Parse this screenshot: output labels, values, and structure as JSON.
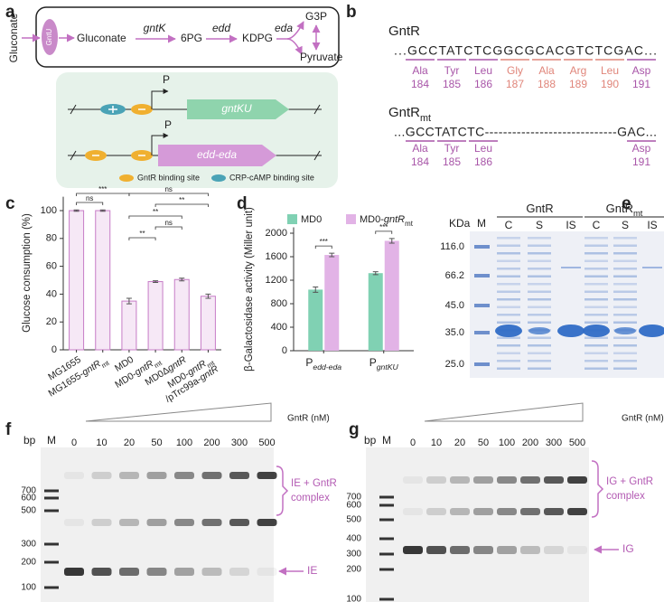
{
  "panel_labels": [
    "a",
    "b",
    "c",
    "d",
    "e",
    "f",
    "g"
  ],
  "pathway": {
    "outside": "Gluconate",
    "transporter": "GntU",
    "steps": [
      "Gluconate",
      "6PG",
      "KDPG",
      "G3P",
      "Pyruvate"
    ],
    "enzymes": [
      "gntK",
      "edd",
      "eda"
    ]
  },
  "operons": {
    "promoter": "P",
    "genes": [
      "gntKU",
      "edd-eda"
    ],
    "legend": [
      "GntR binding site",
      "CRP-cAMP binding site"
    ]
  },
  "sequences": [
    {
      "name": [
        {
          "text": "GntR"
        }
      ],
      "seq": "...GCCTATCTCGGCGCACGTCTCGAC...",
      "residues": [
        {
          "aa": "Ala",
          "pos": 184,
          "color": "#a855a8"
        },
        {
          "aa": "Tyr",
          "pos": 185,
          "color": "#a855a8"
        },
        {
          "aa": "Leu",
          "pos": 186,
          "color": "#a855a8"
        },
        {
          "aa": "Gly",
          "pos": 187,
          "color": "#e0857a"
        },
        {
          "aa": "Ala",
          "pos": 188,
          "color": "#e0857a"
        },
        {
          "aa": "Arg",
          "pos": 189,
          "color": "#e0857a"
        },
        {
          "aa": "Leu",
          "pos": 190,
          "color": "#e0857a"
        },
        {
          "aa": "Asp",
          "pos": 191,
          "color": "#a855a8"
        }
      ]
    },
    {
      "name": [
        {
          "text": "GntR"
        },
        {
          "text": "mt",
          "sub": true
        }
      ],
      "seq": "...GCCTATCTC-----------------------------GAC...",
      "residues": [
        {
          "aa": "Ala",
          "pos": 184,
          "color": "#a855a8"
        },
        {
          "aa": "Tyr",
          "pos": 185,
          "color": "#a855a8"
        },
        {
          "aa": "Leu",
          "pos": 186,
          "color": "#a855a8"
        },
        {
          "aa": "Asp",
          "pos": 191,
          "color": "#a855a8"
        }
      ]
    }
  ],
  "chart_data": [
    {
      "type": "bar",
      "ylabel": "Glucose consumption (%)",
      "categories": [
        [
          {
            "text": "MG1655"
          }
        ],
        [
          {
            "text": "MG1655-"
          },
          {
            "text": "gntR",
            "italic": true
          },
          {
            "text": "mt",
            "sub": true
          }
        ],
        [
          {
            "text": "MD0"
          }
        ],
        [
          {
            "text": "MD0-"
          },
          {
            "text": "gntR",
            "italic": true
          },
          {
            "text": "mt",
            "sub": true
          }
        ],
        [
          {
            "text": "MD0Δ"
          },
          {
            "text": "gntR",
            "italic": true
          }
        ],
        [
          {
            "text": "MD0-"
          },
          {
            "text": "gntR",
            "italic": true
          },
          {
            "text": "mt",
            "sub": true
          },
          {
            "text": "/pTrc99a-",
            "break": true
          },
          {
            "text": "gntR",
            "italic": true
          }
        ]
      ],
      "values": [
        100,
        100,
        35,
        49,
        50.5,
        38.5
      ],
      "errors": [
        0.5,
        0.5,
        2,
        0.6,
        1,
        1.5
      ],
      "color": "#f6e8f6",
      "edge_color": "#c77dc7",
      "ylim": [
        0,
        110
      ],
      "yticks": [
        0,
        20,
        40,
        60,
        80,
        100
      ],
      "significance": [
        "***",
        "ns",
        "ns",
        "**",
        "**",
        "ns",
        "**"
      ]
    },
    {
      "type": "grouped-bar",
      "ylabel": "β-Galactosidase activity (Miller unit)",
      "categories": [
        [
          {
            "text": "P"
          },
          {
            "text": "edd-eda",
            "sub": true,
            "italic": true
          }
        ],
        [
          {
            "text": "P"
          },
          {
            "text": "gntKU",
            "sub": true,
            "italic": true
          }
        ]
      ],
      "series": [
        {
          "name": [
            {
              "text": "MD0"
            }
          ],
          "color": "#80d1b3",
          "values": [
            1040,
            1320
          ],
          "errors": [
            45,
            25
          ]
        },
        {
          "name": [
            {
              "text": "MD0-"
            },
            {
              "text": "gntR",
              "italic": true
            },
            {
              "text": "mt",
              "sub": true
            }
          ],
          "color": "#e2b3e6",
          "values": [
            1630,
            1870
          ],
          "errors": [
            30,
            40
          ]
        }
      ],
      "ylim": [
        0,
        2100
      ],
      "yticks": [
        0,
        400,
        800,
        1200,
        1600,
        2000
      ],
      "significance": [
        "***",
        "***"
      ]
    }
  ],
  "gels": {
    "e": {
      "unit": "KDa",
      "marker_lane": "M",
      "groups": [
        {
          "name": [
            {
              "text": "GntR"
            }
          ],
          "lanes": [
            "C",
            "S",
            "IS"
          ]
        },
        {
          "name": [
            {
              "text": "GntR"
            },
            {
              "text": "mt",
              "sub": true
            }
          ],
          "lanes": [
            "C",
            "S",
            "IS"
          ]
        }
      ],
      "markers": [
        "116.0",
        "66.2",
        "45.0",
        "35.0",
        "25.0"
      ]
    },
    "f": {
      "unit": "bp",
      "marker_lane": "M",
      "concentration_label": "GntR (nM)",
      "concentrations": [
        "0",
        "10",
        "20",
        "50",
        "100",
        "200",
        "300",
        "500"
      ],
      "markers": [
        "700",
        "600",
        "500",
        "300",
        "200",
        "100"
      ],
      "complex_label": [
        "IE + GntR",
        "complex"
      ],
      "free_label": "IE"
    },
    "g": {
      "unit": "bp",
      "marker_lane": "M",
      "concentration_label": "GntR (nM)",
      "concentrations": [
        "0",
        "10",
        "20",
        "50",
        "100",
        "200",
        "300",
        "500"
      ],
      "markers": [
        "700",
        "600",
        "500",
        "400",
        "300",
        "200",
        "100"
      ],
      "complex_label": [
        "IG + GntR",
        "complex"
      ],
      "free_label": "IG"
    }
  }
}
